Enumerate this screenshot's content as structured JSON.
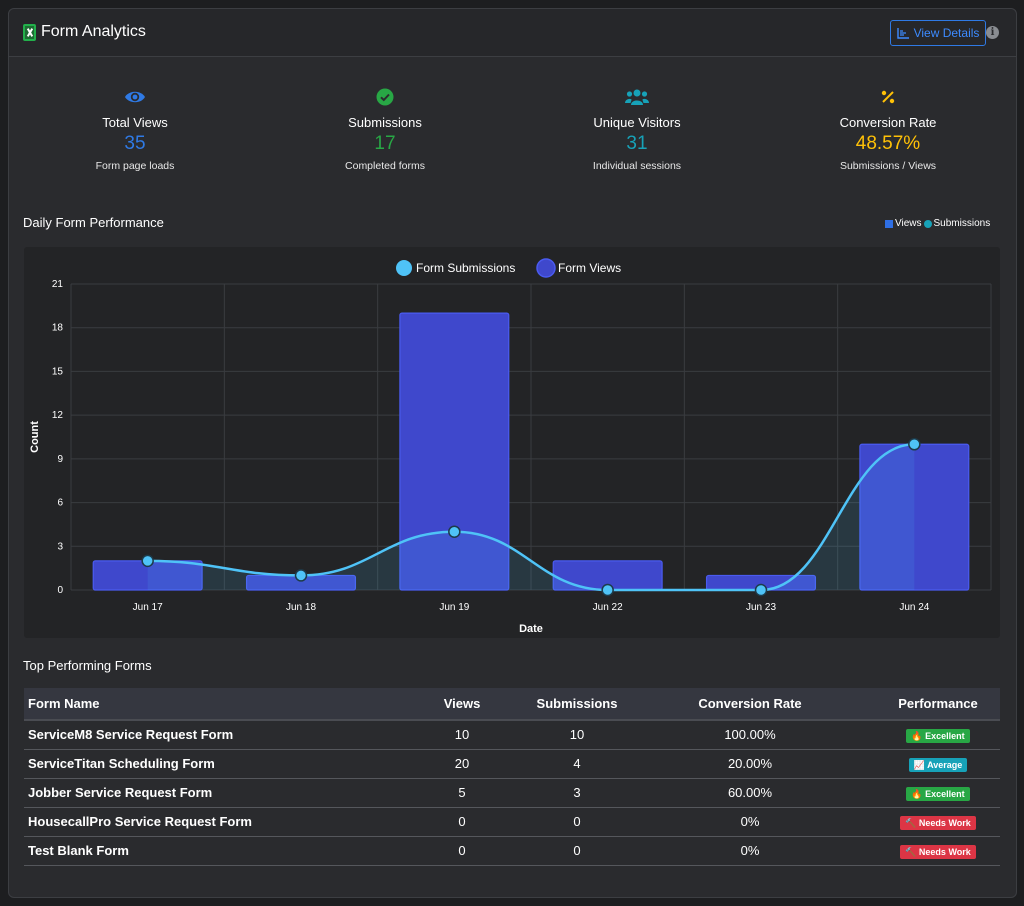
{
  "header": {
    "title": "Form Analytics",
    "view_details_label": "View Details",
    "info_label": "i"
  },
  "stats": [
    {
      "label": "Total Views",
      "value": "35",
      "sub": "Form page loads",
      "icon": "eye-icon",
      "color": "#2f7ae5"
    },
    {
      "label": "Submissions",
      "value": "17",
      "sub": "Completed forms",
      "icon": "check-circle-icon",
      "color": "#28a745"
    },
    {
      "label": "Unique Visitors",
      "value": "31",
      "sub": "Individual sessions",
      "icon": "users-icon",
      "color": "#17a2b8"
    },
    {
      "label": "Conversion Rate",
      "value": "48.57%",
      "sub": "Submissions / Views",
      "icon": "percent-icon",
      "color": "#ffc107"
    }
  ],
  "daily": {
    "title": "Daily Form Performance",
    "legend_views": "Views",
    "legend_submissions": "Submissions"
  },
  "chart_data": {
    "type": "bar",
    "categories": [
      "Jun 17",
      "Jun 18",
      "Jun 19",
      "Jun 22",
      "Jun 23",
      "Jun 24"
    ],
    "series": [
      {
        "name": "Form Views",
        "type": "bar",
        "values": [
          2,
          1,
          19,
          2,
          1,
          10
        ],
        "color": "#3f48cc"
      },
      {
        "name": "Form Submissions",
        "type": "line",
        "values": [
          2,
          1,
          4,
          0,
          0,
          10
        ],
        "color": "#4fc3f7"
      }
    ],
    "xlabel": "Date",
    "ylabel": "Count",
    "ylim": [
      0,
      21
    ],
    "yticks": [
      0,
      3,
      6,
      9,
      12,
      15,
      18,
      21
    ],
    "legend": "top-center",
    "grid": true
  },
  "top_forms": {
    "title": "Top Performing Forms",
    "columns": [
      "Form Name",
      "Views",
      "Submissions",
      "Conversion Rate",
      "Performance"
    ],
    "rows": [
      {
        "name": "ServiceM8 Service Request Form",
        "views": "10",
        "submissions": "10",
        "rate": "100.00%",
        "badge": "🔥 Excellent",
        "badge_color": "#28a745"
      },
      {
        "name": "ServiceTitan Scheduling Form",
        "views": "20",
        "submissions": "4",
        "rate": "20.00%",
        "badge": "📈 Average",
        "badge_color": "#17a2b8"
      },
      {
        "name": "Jobber Service Request Form",
        "views": "5",
        "submissions": "3",
        "rate": "60.00%",
        "badge": "🔥 Excellent",
        "badge_color": "#28a745"
      },
      {
        "name": "HousecallPro Service Request Form",
        "views": "0",
        "submissions": "0",
        "rate": "0%",
        "badge": "🔨 Needs Work",
        "badge_color": "#dc3545"
      },
      {
        "name": "Test Blank Form",
        "views": "0",
        "submissions": "0",
        "rate": "0%",
        "badge": "🔨 Needs Work",
        "badge_color": "#dc3545"
      }
    ]
  }
}
